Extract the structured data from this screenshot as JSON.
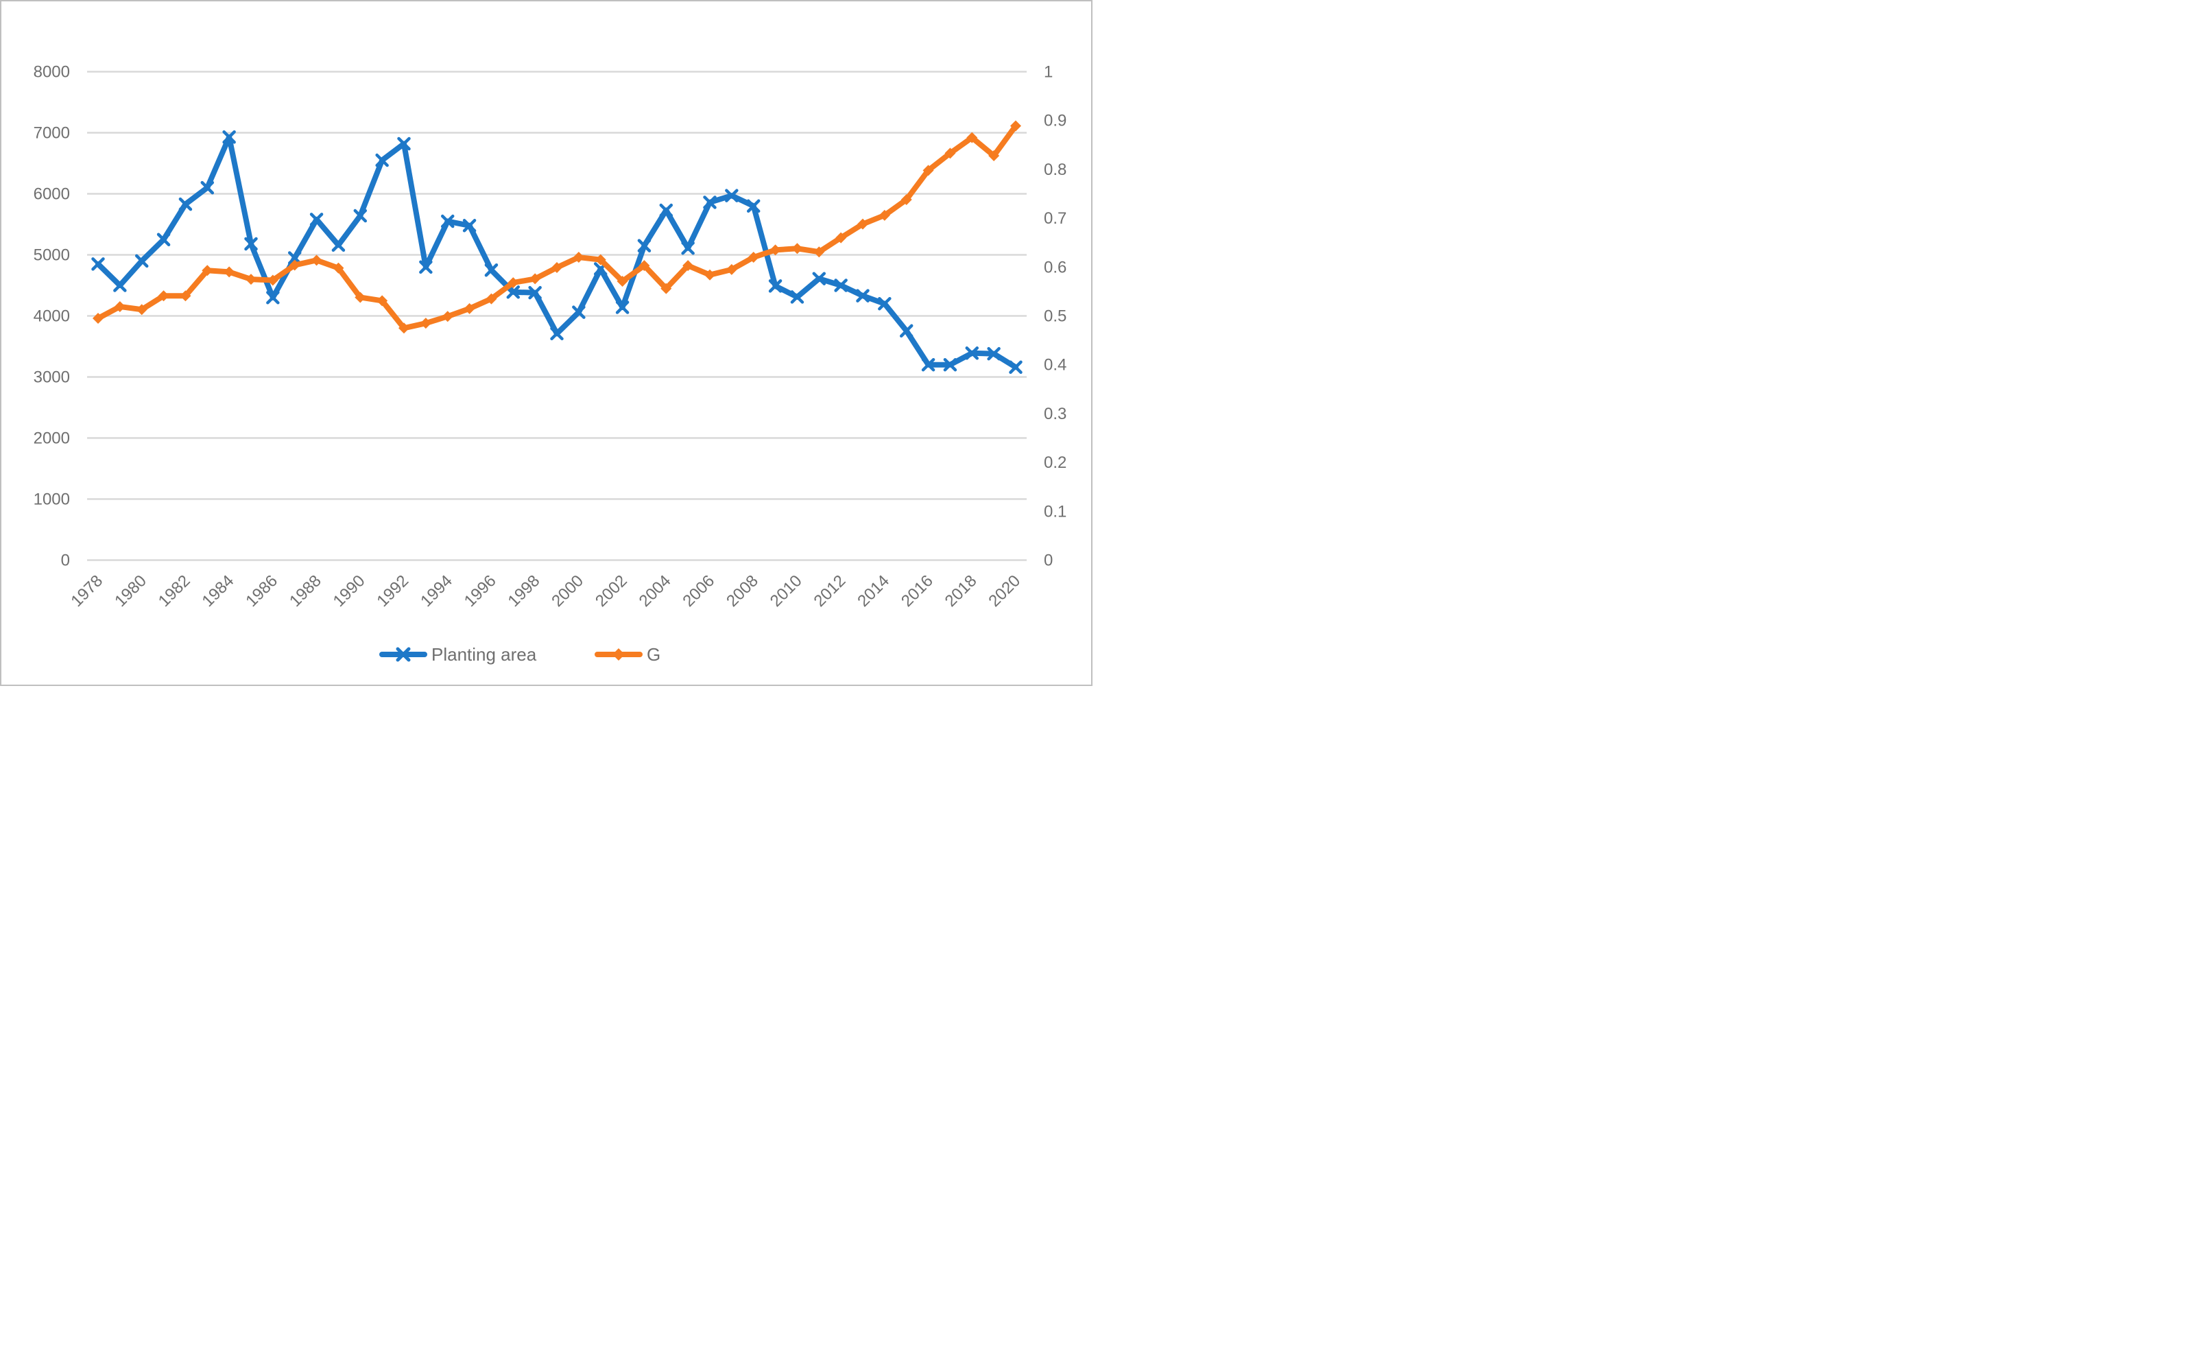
{
  "chart_data": {
    "type": "line",
    "title": "",
    "x": [
      1978,
      1979,
      1980,
      1981,
      1982,
      1983,
      1984,
      1985,
      1986,
      1987,
      1988,
      1989,
      1990,
      1991,
      1992,
      1993,
      1994,
      1995,
      1996,
      1997,
      1998,
      1999,
      2000,
      2001,
      2002,
      2003,
      2004,
      2005,
      2006,
      2007,
      2008,
      2009,
      2010,
      2011,
      2012,
      2013,
      2014,
      2015,
      2016,
      2017,
      2018,
      2019,
      2020
    ],
    "x_tick_labels": [
      "1978",
      "1980",
      "1982",
      "1984",
      "1986",
      "1988",
      "1990",
      "1992",
      "1994",
      "1996",
      "1998",
      "2000",
      "2002",
      "2004",
      "2006",
      "2008",
      "2010",
      "2012",
      "2014",
      "2016",
      "2018",
      "2020"
    ],
    "series": [
      {
        "name": "Planting area",
        "axis": "left",
        "marker": "x",
        "color": "#1e78c8",
        "values": [
          4850,
          4500,
          4900,
          5250,
          5830,
          6100,
          6930,
          5180,
          4300,
          4950,
          5580,
          5160,
          5640,
          6550,
          6820,
          4800,
          5550,
          5480,
          4750,
          4390,
          4380,
          3710,
          4060,
          4770,
          4140,
          5150,
          5730,
          5110,
          5860,
          5970,
          5800,
          4490,
          4310,
          4610,
          4500,
          4330,
          4200,
          3755,
          3200,
          3200,
          3390,
          3380,
          3160
        ]
      },
      {
        "name": "G",
        "axis": "right",
        "marker": "diamond",
        "color": "#f67c20",
        "values": [
          0.495,
          0.519,
          0.513,
          0.541,
          0.541,
          0.593,
          0.59,
          0.575,
          0.573,
          0.604,
          0.614,
          0.598,
          0.538,
          0.531,
          0.475,
          0.485,
          0.499,
          0.515,
          0.535,
          0.568,
          0.576,
          0.599,
          0.62,
          0.615,
          0.571,
          0.603,
          0.556,
          0.603,
          0.584,
          0.595,
          0.62,
          0.635,
          0.638,
          0.631,
          0.66,
          0.688,
          0.706,
          0.738,
          0.798,
          0.833,
          0.865,
          0.828,
          0.889
        ]
      }
    ],
    "left_axis": {
      "min": 0,
      "max": 8000,
      "step": 1000,
      "tick_labels": [
        "0",
        "1000",
        "2000",
        "3000",
        "4000",
        "5000",
        "6000",
        "7000",
        "8000"
      ]
    },
    "right_axis": {
      "min": 0,
      "max": 1,
      "step": 0.1,
      "tick_labels": [
        "0",
        "0.1",
        "0.2",
        "0.3",
        "0.4",
        "0.5",
        "0.6",
        "0.7",
        "0.8",
        "0.9",
        "1"
      ]
    },
    "grid": true,
    "legend_position": "bottom",
    "legend": [
      {
        "label": "Planting area",
        "marker": "x",
        "color": "#1e78c8"
      },
      {
        "label": "G",
        "marker": "diamond",
        "color": "#f67c20"
      }
    ]
  },
  "style": {
    "grid_color": "#d9d9d9",
    "label_color": "#6f6f6f",
    "border_color": "#bfbfbf",
    "background": "#ffffff"
  }
}
